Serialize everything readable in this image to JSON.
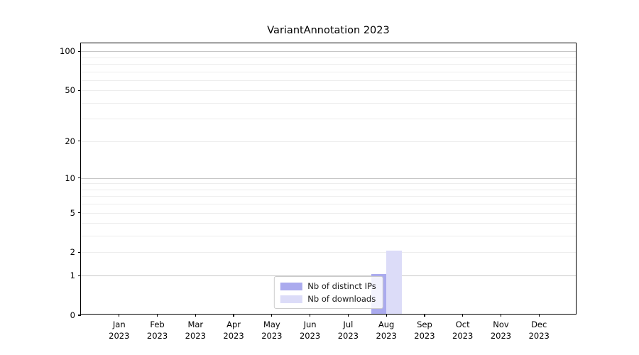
{
  "title": "VariantAnnotation 2023",
  "colors": {
    "ips": "#aaaaee",
    "downloads": "#dcdcf8",
    "grid_major": "#c6c6c6",
    "grid_minor": "#ededed",
    "spine": "#000000",
    "background": "#ffffff"
  },
  "legend": {
    "items": [
      {
        "key": "ips",
        "label": "Nb of distinct IPs"
      },
      {
        "key": "downloads",
        "label": "Nb of downloads"
      }
    ]
  },
  "chart_data": {
    "type": "bar",
    "title": "VariantAnnotation 2023",
    "categories": [
      {
        "month": "Jan",
        "year": "2023"
      },
      {
        "month": "Feb",
        "year": "2023"
      },
      {
        "month": "Mar",
        "year": "2023"
      },
      {
        "month": "Apr",
        "year": "2023"
      },
      {
        "month": "May",
        "year": "2023"
      },
      {
        "month": "Jun",
        "year": "2023"
      },
      {
        "month": "Jul",
        "year": "2023"
      },
      {
        "month": "Aug",
        "year": "2023"
      },
      {
        "month": "Sep",
        "year": "2023"
      },
      {
        "month": "Oct",
        "year": "2023"
      },
      {
        "month": "Nov",
        "year": "2023"
      },
      {
        "month": "Dec",
        "year": "2023"
      }
    ],
    "series": [
      {
        "key": "ips",
        "name": "Nb of distinct IPs",
        "values": [
          0,
          0,
          0,
          0,
          0,
          0,
          0,
          1,
          0,
          0,
          0,
          0
        ]
      },
      {
        "key": "downloads",
        "name": "Nb of downloads",
        "values": [
          0,
          0,
          0,
          0,
          0,
          0,
          0,
          2,
          0,
          0,
          0,
          0
        ]
      }
    ],
    "y_axis": {
      "scale": "log10(value+1)",
      "tick_values": [
        0,
        1,
        2,
        5,
        10,
        20,
        50,
        100
      ],
      "tick_labels": [
        "0",
        "1",
        "2",
        "5",
        "10",
        "20",
        "50",
        "100"
      ],
      "major_gridline_values": [
        1,
        10,
        100
      ],
      "minor_gridline_values": [
        2,
        3,
        4,
        5,
        6,
        7,
        8,
        9,
        20,
        30,
        40,
        50,
        60,
        70,
        80,
        90
      ],
      "range_displayed": [
        0,
        100
      ]
    },
    "xlabel": "",
    "ylabel": "",
    "grid": "horizontal",
    "legend_position": "bottom-center"
  }
}
